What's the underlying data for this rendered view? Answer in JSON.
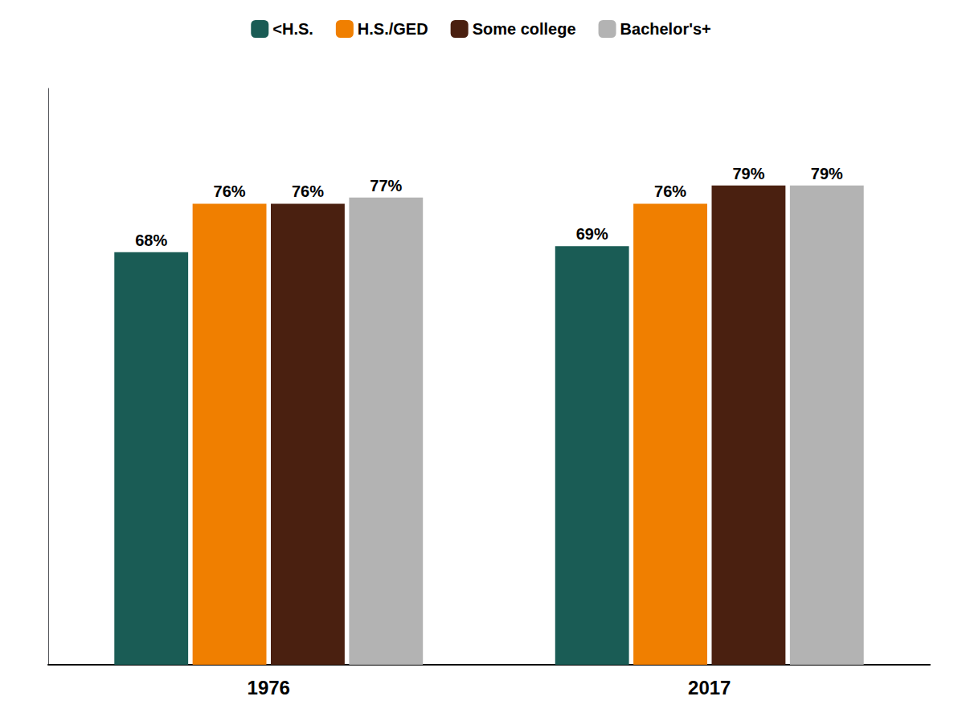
{
  "chart_data": {
    "type": "bar",
    "categories": [
      "1976",
      "2017"
    ],
    "series": [
      {
        "name": "<H.S.",
        "color": "#1a5c55",
        "values": [
          68,
          69
        ],
        "value_labels": [
          "68%",
          "69%"
        ]
      },
      {
        "name": "H.S./GED",
        "color": "#f07f00",
        "values": [
          76,
          76
        ],
        "value_labels": [
          "76%",
          "76%"
        ]
      },
      {
        "name": "Some college",
        "color": "#4a2010",
        "values": [
          76,
          79
        ],
        "value_labels": [
          "76%",
          "79%"
        ]
      },
      {
        "name": "Bachelor's+",
        "color": "#b3b3b3",
        "values": [
          77,
          79
        ],
        "value_labels": [
          "77%",
          "79%"
        ]
      }
    ],
    "ylim": [
      0,
      95
    ],
    "grid": false,
    "legend": "top",
    "data_labels": true,
    "tick_labels": "x"
  }
}
